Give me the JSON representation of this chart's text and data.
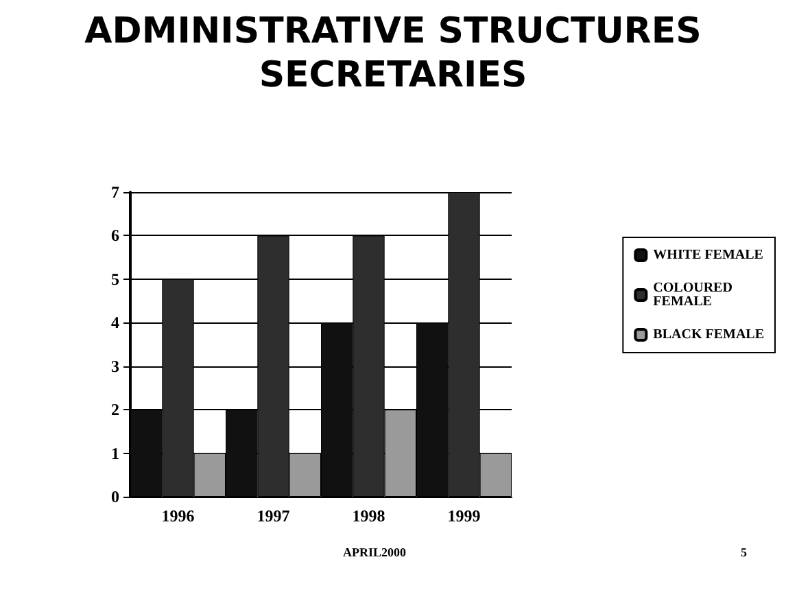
{
  "chart_data": {
    "type": "bar",
    "title": "ADMINISTRATIVE STRUCTURES\nSECRETARIES",
    "categories": [
      "1996",
      "1997",
      "1998",
      "1999"
    ],
    "series": [
      {
        "name": "WHITE FEMALE",
        "color": "#111111",
        "values": [
          2,
          2,
          4,
          4
        ]
      },
      {
        "name": "COLOURED FEMALE",
        "color": "#2e2e2e",
        "values": [
          5,
          6,
          6,
          7
        ]
      },
      {
        "name": "BLACK FEMALE",
        "color": "#9a9a9a",
        "values": [
          1,
          1,
          2,
          1
        ]
      }
    ],
    "ylim": [
      0,
      7
    ],
    "yticks": [
      0,
      1,
      2,
      3,
      4,
      5,
      6,
      7
    ],
    "grid": "y",
    "legend": "right",
    "annotations": [
      "APRIL2000",
      "5"
    ]
  }
}
